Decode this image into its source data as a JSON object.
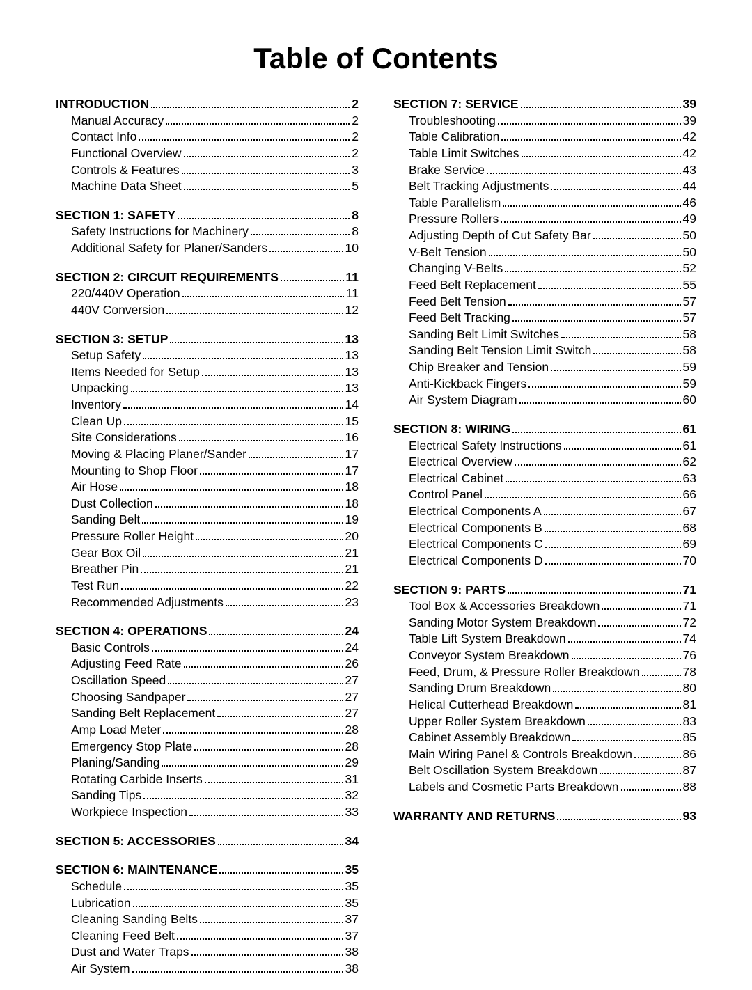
{
  "title": "Table of Contents",
  "columns": [
    [
      {
        "header": {
          "label": "INTRODUCTION",
          "page": "2"
        },
        "items": [
          {
            "label": "Manual Accuracy",
            "page": "2"
          },
          {
            "label": "Contact Info",
            "page": "2"
          },
          {
            "label": "Functional Overview",
            "page": "2"
          },
          {
            "label": "Controls & Features",
            "page": "3"
          },
          {
            "label": "Machine Data Sheet",
            "page": "5"
          }
        ]
      },
      {
        "header": {
          "label": "SECTION 1: SAFETY",
          "page": "8"
        },
        "items": [
          {
            "label": "Safety Instructions for Machinery",
            "page": "8"
          },
          {
            "label": "Additional Safety for Planer/Sanders",
            "page": "10"
          }
        ]
      },
      {
        "header": {
          "label": "SECTION 2: CIRCUIT REQUIREMENTS",
          "page": "11"
        },
        "items": [
          {
            "label": "220/440V Operation",
            "page": "11"
          },
          {
            "label": "440V Conversion",
            "page": "12"
          }
        ]
      },
      {
        "header": {
          "label": "SECTION 3: SETUP",
          "page": "13"
        },
        "items": [
          {
            "label": "Setup Safety",
            "page": "13"
          },
          {
            "label": "Items Needed for Setup",
            "page": "13"
          },
          {
            "label": "Unpacking",
            "page": "13"
          },
          {
            "label": "Inventory",
            "page": "14"
          },
          {
            "label": "Clean Up",
            "page": "15"
          },
          {
            "label": "Site Considerations",
            "page": "16"
          },
          {
            "label": "Moving & Placing Planer/Sander",
            "page": "17"
          },
          {
            "label": "Mounting to Shop Floor",
            "page": "17"
          },
          {
            "label": "Air Hose",
            "page": "18"
          },
          {
            "label": "Dust Collection",
            "page": "18"
          },
          {
            "label": "Sanding Belt",
            "page": "19"
          },
          {
            "label": "Pressure Roller Height",
            "page": "20"
          },
          {
            "label": "Gear Box Oil",
            "page": "21"
          },
          {
            "label": "Breather Pin",
            "page": "21"
          },
          {
            "label": "Test Run",
            "page": "22"
          },
          {
            "label": "Recommended Adjustments",
            "page": "23"
          }
        ]
      },
      {
        "header": {
          "label": "SECTION 4: OPERATIONS",
          "page": "24"
        },
        "items": [
          {
            "label": "Basic Controls",
            "page": "24"
          },
          {
            "label": "Adjusting Feed Rate",
            "page": "26"
          },
          {
            "label": "Oscillation Speed",
            "page": "27"
          },
          {
            "label": "Choosing Sandpaper",
            "page": "27"
          },
          {
            "label": "Sanding Belt Replacement",
            "page": "27"
          },
          {
            "label": "Amp Load Meter",
            "page": "28"
          },
          {
            "label": "Emergency Stop Plate",
            "page": "28"
          },
          {
            "label": "Planing/Sanding",
            "page": "29"
          },
          {
            "label": "Rotating Carbide Inserts",
            "page": "31"
          },
          {
            "label": "Sanding Tips",
            "page": "32"
          },
          {
            "label": "Workpiece Inspection",
            "page": "33"
          }
        ]
      },
      {
        "header": {
          "label": "SECTION 5: ACCESSORIES",
          "page": "34"
        },
        "items": []
      },
      {
        "header": {
          "label": "SECTION 6: MAINTENANCE",
          "page": "35"
        },
        "items": [
          {
            "label": "Schedule",
            "page": "35"
          },
          {
            "label": "Lubrication",
            "page": "35"
          },
          {
            "label": "Cleaning Sanding Belts",
            "page": "37"
          },
          {
            "label": "Cleaning Feed Belt",
            "page": "37"
          },
          {
            "label": "Dust and Water Traps",
            "page": "38"
          },
          {
            "label": "Air System",
            "page": "38"
          }
        ]
      }
    ],
    [
      {
        "header": {
          "label": "SECTION 7: SERVICE",
          "page": "39"
        },
        "items": [
          {
            "label": "Troubleshooting",
            "page": "39"
          },
          {
            "label": "Table Calibration",
            "page": "42"
          },
          {
            "label": "Table Limit Switches",
            "page": "42"
          },
          {
            "label": "Brake Service",
            "page": "43"
          },
          {
            "label": "Belt Tracking Adjustments",
            "page": "44"
          },
          {
            "label": "Table Parallelism",
            "page": "46"
          },
          {
            "label": "Pressure Rollers",
            "page": "49"
          },
          {
            "label": "Adjusting Depth of Cut Safety Bar",
            "page": "50"
          },
          {
            "label": "V-Belt Tension",
            "page": "50"
          },
          {
            "label": "Changing V-Belts",
            "page": "52"
          },
          {
            "label": "Feed Belt Replacement",
            "page": "55"
          },
          {
            "label": "Feed Belt Tension",
            "page": "57"
          },
          {
            "label": "Feed Belt Tracking",
            "page": "57"
          },
          {
            "label": "Sanding Belt Limit Switches",
            "page": "58"
          },
          {
            "label": "Sanding Belt Tension Limit Switch",
            "page": "58"
          },
          {
            "label": "Chip Breaker and Tension",
            "page": "59"
          },
          {
            "label": "Anti-Kickback Fingers",
            "page": "59"
          },
          {
            "label": "Air System Diagram",
            "page": "60"
          }
        ]
      },
      {
        "header": {
          "label": "SECTION 8: WIRING",
          "page": "61"
        },
        "items": [
          {
            "label": "Electrical Safety Instructions",
            "page": "61"
          },
          {
            "label": "Electrical Overview",
            "page": "62"
          },
          {
            "label": "Electrical Cabinet",
            "page": "63"
          },
          {
            "label": "Control Panel",
            "page": "66"
          },
          {
            "label": "Electrical Components A",
            "page": "67"
          },
          {
            "label": "Electrical Components B",
            "page": "68"
          },
          {
            "label": "Electrical Components C",
            "page": "69"
          },
          {
            "label": "Electrical Components D",
            "page": "70"
          }
        ]
      },
      {
        "header": {
          "label": "SECTION 9: PARTS",
          "page": "71"
        },
        "items": [
          {
            "label": "Tool Box & Accessories Breakdown",
            "page": "71"
          },
          {
            "label": "Sanding Motor System Breakdown",
            "page": "72"
          },
          {
            "label": "Table Lift System Breakdown",
            "page": "74"
          },
          {
            "label": "Conveyor System Breakdown",
            "page": "76"
          },
          {
            "label": "Feed, Drum, & Pressure Roller Breakdown",
            "page": "78"
          },
          {
            "label": "Sanding Drum Breakdown",
            "page": "80"
          },
          {
            "label": "Helical Cutterhead Breakdown",
            "page": "81"
          },
          {
            "label": "Upper Roller System Breakdown",
            "page": "83"
          },
          {
            "label": "Cabinet Assembly Breakdown",
            "page": "85"
          },
          {
            "label": "Main Wiring Panel & Controls Breakdown",
            "page": "86"
          },
          {
            "label": "Belt Oscillation System Breakdown",
            "page": "87"
          },
          {
            "label": "Labels and Cosmetic Parts Breakdown",
            "page": "88"
          }
        ]
      },
      {
        "header": {
          "label": "WARRANTY AND RETURNS",
          "page": "93"
        },
        "items": []
      }
    ]
  ]
}
